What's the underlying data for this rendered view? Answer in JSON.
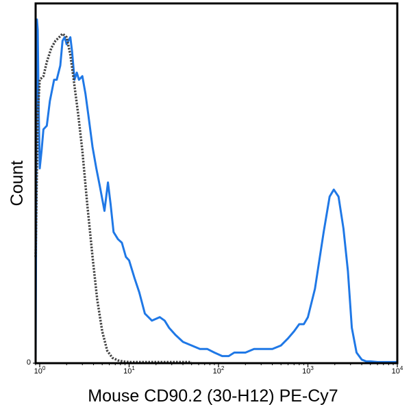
{
  "chart_data": {
    "type": "line",
    "title": "",
    "xlabel": "Mouse CD90.2 (30-H12) PE-Cy7",
    "ylabel": "Count",
    "x_scale": "log",
    "xlim": [
      0.9,
      10000
    ],
    "ylim": [
      0,
      100
    ],
    "x_ticks": [
      {
        "value": 1,
        "base": "10",
        "exp": "0"
      },
      {
        "value": 10,
        "base": "10",
        "exp": "1"
      },
      {
        "value": 100,
        "base": "10",
        "exp": "2"
      },
      {
        "value": 1000,
        "base": "10",
        "exp": "3"
      },
      {
        "value": 10000,
        "base": "10",
        "exp": "4"
      }
    ],
    "y_ticks": [
      {
        "value": 0,
        "label": "0"
      }
    ],
    "grid": false,
    "legend": "none",
    "series": [
      {
        "color": "#1f78e6",
        "style": "solid",
        "x": [
          0.9,
          0.93,
          0.95,
          0.97,
          1.0,
          1.05,
          1.1,
          1.2,
          1.3,
          1.45,
          1.55,
          1.7,
          1.8,
          1.9,
          2.0,
          2.1,
          2.2,
          2.3,
          2.45,
          2.6,
          2.75,
          3.0,
          3.25,
          3.5,
          3.9,
          4.3,
          4.7,
          5.3,
          5.8,
          6.2,
          6.7,
          7.5,
          8.3,
          9.2,
          10,
          11.5,
          13,
          15,
          18,
          22,
          25,
          28,
          33,
          40,
          50,
          62,
          75,
          90,
          110,
          130,
          150,
          200,
          250,
          300,
          400,
          500,
          600,
          700,
          800,
          900,
          1000,
          1200,
          1500,
          1750,
          1950,
          2200,
          2500,
          2800,
          3100,
          3500,
          4000,
          4500,
          5000,
          6000,
          8000,
          10000
        ],
        "y": [
          0.5,
          97,
          94,
          75,
          55,
          60,
          66,
          67,
          74,
          80,
          80,
          84,
          91,
          92,
          90,
          91,
          92,
          88,
          80,
          82,
          80,
          81,
          76,
          70,
          61,
          55,
          50,
          43,
          51,
          45,
          37,
          35,
          34,
          30,
          29,
          24,
          20,
          14,
          12,
          13,
          12,
          10,
          8,
          6,
          5,
          4,
          4,
          3,
          2,
          2,
          3,
          3,
          4,
          4,
          4,
          5,
          7,
          9,
          11,
          11,
          13,
          21,
          37,
          47,
          49,
          47,
          38,
          26,
          10,
          3,
          1,
          0.5,
          0.5,
          0.3,
          0.3,
          0.3
        ]
      },
      {
        "color": "#444444",
        "style": "dotted",
        "x": [
          0.9,
          0.95,
          1.0,
          1.1,
          1.2,
          1.35,
          1.5,
          1.65,
          1.8,
          2.0,
          2.2,
          2.4,
          2.7,
          3.0,
          3.4,
          3.9,
          4.4,
          5.0,
          5.7,
          6.5,
          7.5,
          8.5,
          10,
          13,
          18,
          25,
          35,
          50
        ],
        "y": [
          30,
          70,
          80,
          81,
          85,
          89,
          91,
          92,
          93,
          92,
          87,
          80,
          70,
          60,
          45,
          30,
          18,
          9,
          3.5,
          1.5,
          0.8,
          0.5,
          0.3,
          0.3,
          0.3,
          0.3,
          0.3,
          0.3
        ]
      }
    ]
  }
}
